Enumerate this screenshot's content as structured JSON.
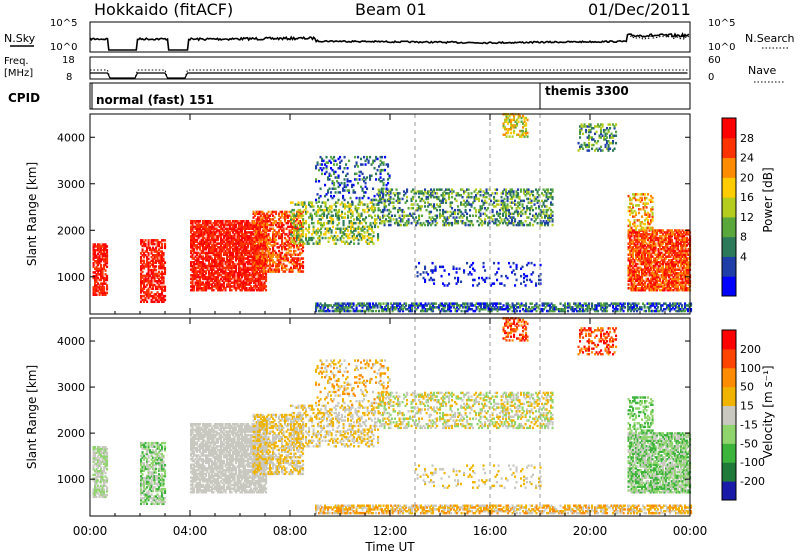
{
  "header": {
    "title": "Hokkaido (fitACF)",
    "beam": "Beam 01",
    "date": "01/Dec/2011"
  },
  "chart_data": [
    {
      "type": "line",
      "panel": "noise",
      "left_label": "N.Sky",
      "right_label": "N.Search",
      "left_ticks": [
        "10^5",
        "10^0"
      ],
      "right_ticks": [
        "10^5",
        "10^0"
      ]
    },
    {
      "type": "line",
      "panel": "frequency",
      "left_label_1": "Freq.",
      "left_label_2": "[MHz]",
      "right_label": "Nave",
      "left_ticks": [
        "18",
        "8"
      ],
      "right_ticks": [
        "60",
        "0"
      ]
    },
    {
      "type": "table",
      "panel": "cpid",
      "label": "CPID",
      "modes": [
        {
          "name": "normal (fast) 151",
          "start_hour": 0
        },
        {
          "name": "themis 3300",
          "start_hour": 18
        }
      ]
    },
    {
      "type": "heatmap",
      "panel": "power",
      "ylabel": "Slant Range [km]",
      "yticks": [
        1000,
        2000,
        3000,
        4000
      ],
      "ylim": [
        200,
        4500
      ],
      "colorbar_label": "Power [dB]",
      "colorbar_ticks": [
        "28",
        "24",
        "20",
        "16",
        "12",
        "8",
        "4"
      ],
      "colors": [
        "#0000ff",
        "#1f3ea8",
        "#2c7a5a",
        "#5aa83c",
        "#b4cc1e",
        "#ffcc00",
        "#ff8c00",
        "#ff3300",
        "#ff0000"
      ]
    },
    {
      "type": "heatmap",
      "panel": "velocity",
      "ylabel": "Slant Range [km]",
      "yticks": [
        1000,
        2000,
        3000,
        4000
      ],
      "ylim": [
        200,
        4500
      ],
      "colorbar_label": "Velocity [m s⁻¹]",
      "colorbar_ticks": [
        "200",
        "100",
        "50",
        "15",
        "-15",
        "-50",
        "-100",
        "-200"
      ],
      "colors": [
        "#1a1aa8",
        "#1f7a3a",
        "#3cb43c",
        "#90d46e",
        "#c8c8c0",
        "#f0b400",
        "#ff8c00",
        "#ff4400",
        "#ff0000"
      ]
    }
  ],
  "time_axis": {
    "xlabel": "Time UT",
    "ticks": [
      "00:00",
      "04:00",
      "08:00",
      "12:00",
      "16:00",
      "20:00",
      "00:00"
    ],
    "xlim_hours": [
      0,
      24
    ]
  }
}
